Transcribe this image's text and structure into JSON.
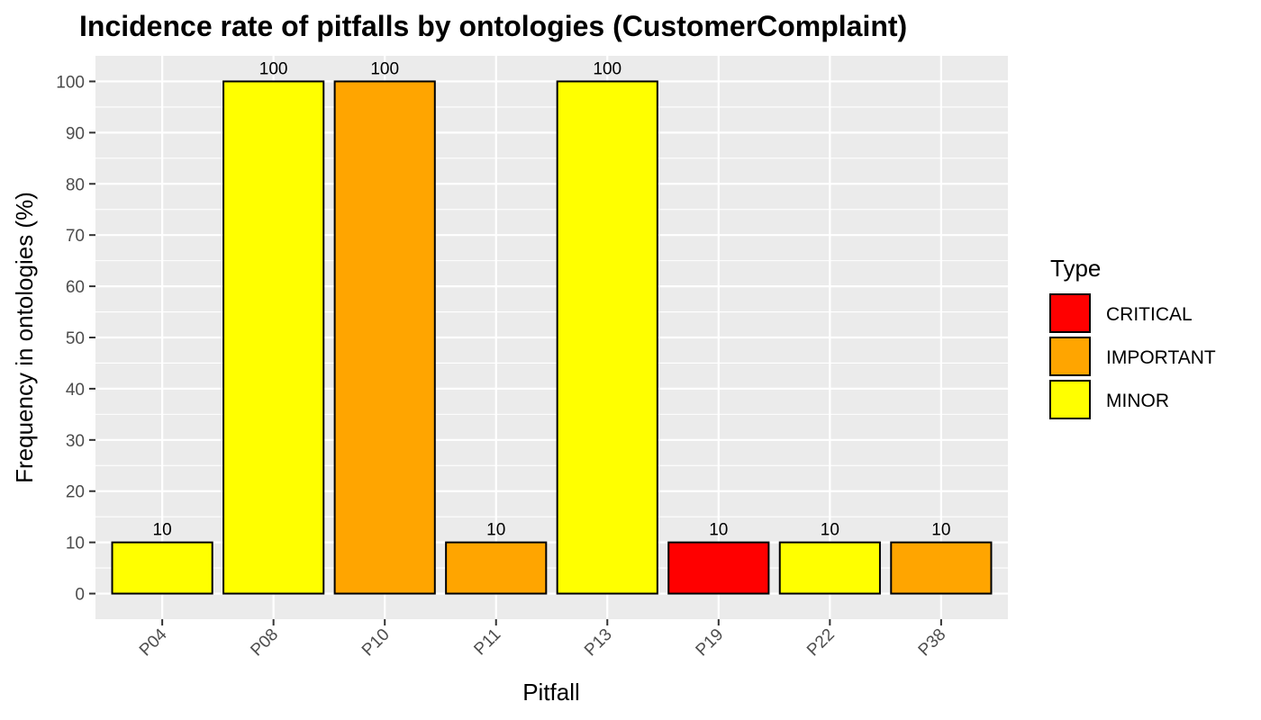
{
  "chart_data": {
    "type": "bar",
    "title": "Incidence rate of pitfalls by ontologies (CustomerComplaint)",
    "xlabel": "Pitfall",
    "ylabel": "Frequency in ontologies (%)",
    "ylim": [
      -5,
      105
    ],
    "yticks": [
      0,
      10,
      20,
      30,
      40,
      50,
      60,
      70,
      80,
      90,
      100
    ],
    "ytick_labels": [
      "0",
      "10",
      "20",
      "30",
      "40",
      "50",
      "60",
      "70",
      "80",
      "90",
      "100"
    ],
    "grid": true,
    "legend_position": "right",
    "categories": [
      "P04",
      "P08",
      "P10",
      "P11",
      "P13",
      "P19",
      "P22",
      "P38"
    ],
    "values": [
      10,
      100,
      100,
      10,
      100,
      10,
      10,
      10
    ],
    "data_labels": [
      "10",
      "100",
      "100",
      "10",
      "100",
      "10",
      "10",
      "10"
    ],
    "types": [
      "MINOR",
      "MINOR",
      "IMPORTANT",
      "IMPORTANT",
      "MINOR",
      "CRITICAL",
      "MINOR",
      "IMPORTANT"
    ],
    "legend": {
      "title": "Type",
      "entries": [
        {
          "label": "CRITICAL",
          "color": "#FF0000"
        },
        {
          "label": "IMPORTANT",
          "color": "#FFA500"
        },
        {
          "label": "MINOR",
          "color": "#FFFF00"
        }
      ]
    }
  },
  "colors": {
    "panel_background": "#EBEBEB",
    "grid_line": "#FFFFFF",
    "bar_outline": "#000000",
    "tick_mark": "#333333"
  }
}
